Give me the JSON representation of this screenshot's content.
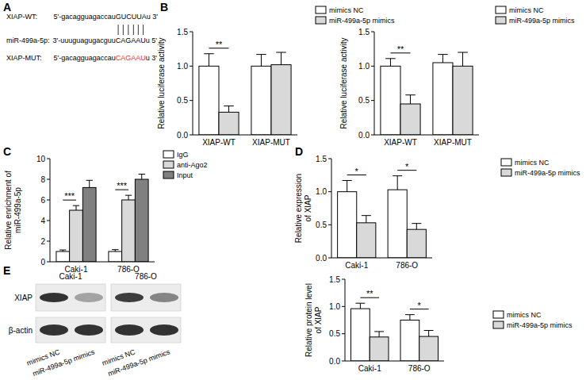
{
  "panel_labels": [
    "A",
    "B",
    "C",
    "D",
    "E"
  ],
  "sequences": [
    {
      "name": "XIAP-WT:",
      "prefix": "5'-gacagguagaccau",
      "seed": "GUCUUA",
      "suffix": "u 3'"
    },
    {
      "name": "miR-499a-5p:",
      "prefix": "3'-uuuguagugacguu",
      "seed": "CAGAAU",
      "suffix": "u 5'"
    },
    {
      "name": "XIAP-MUT:",
      "prefix": "5'-gacagguagaccau",
      "seed": "CAGAAU",
      "suffix": "u 3'",
      "color": "#e8312f"
    }
  ],
  "blot": {
    "cell_lines": [
      "Caki-1",
      "786-O"
    ],
    "proteins": [
      "XIAP",
      "β-actin"
    ],
    "lanes": [
      "mimics NC",
      "miR-499a-5p mimics",
      "mimics NC",
      "miR-499a-5p mimics"
    ]
  },
  "chart_data": [
    {
      "type": "bar",
      "y_label": [
        "Relative luciferase activity"
      ],
      "categories": [
        "XIAP-WT",
        "XIAP-MUT"
      ],
      "series": [
        {
          "name": "mimics NC",
          "color": "#ffffff",
          "values": [
            1.0,
            1.0
          ],
          "errors": [
            0.18,
            0.17
          ]
        },
        {
          "name": "miR-499a-5p mimics",
          "color": "#d9d9d9",
          "values": [
            0.33,
            1.02
          ],
          "errors": [
            0.09,
            0.18
          ]
        }
      ],
      "significance": [
        "**",
        null
      ],
      "ylim": [
        0,
        1.5
      ],
      "yticks": [
        {
          "value": 0,
          "label": "0.0"
        },
        0.5,
        {
          "value": 1,
          "label": "1.0"
        },
        1.5
      ],
      "legend": "right"
    },
    {
      "type": "bar",
      "y_label": [
        "Relative luciferase activity"
      ],
      "categories": [
        "XIAP-WT",
        "XIAP-MUT"
      ],
      "series": [
        {
          "name": "mimics NC",
          "color": "#ffffff",
          "values": [
            1.0,
            1.05
          ],
          "errors": [
            0.11,
            0.12
          ]
        },
        {
          "name": "miR-499a-5p mimics",
          "color": "#d9d9d9",
          "values": [
            0.45,
            1.0
          ],
          "errors": [
            0.13,
            0.2
          ]
        }
      ],
      "significance": [
        "**",
        null
      ],
      "ylim": [
        0,
        1.5
      ],
      "yticks": [
        {
          "value": 0,
          "label": "0.0"
        },
        0.5,
        {
          "value": 1,
          "label": "1.0"
        },
        1.5
      ],
      "legend": "right"
    },
    {
      "type": "bar",
      "y_label": [
        "Relative enrichment of",
        "miR-499a-5p"
      ],
      "categories": [
        "Caki-1",
        "786-O"
      ],
      "series": [
        {
          "name": "IgG",
          "color": "#ffffff",
          "values": [
            1.0,
            1.0
          ],
          "errors": [
            0.15,
            0.18
          ]
        },
        {
          "name": "anti-Ago2",
          "color": "#d9d9d9",
          "values": [
            5.0,
            6.0
          ],
          "errors": [
            0.45,
            0.45
          ]
        },
        {
          "name": "Input",
          "color": "#808080",
          "values": [
            7.2,
            8.0
          ],
          "errors": [
            0.7,
            0.5
          ]
        }
      ],
      "significance": [
        "***",
        "***"
      ],
      "ylim": [
        0,
        10
      ],
      "yticks": [
        0,
        2,
        4,
        6,
        8,
        10
      ],
      "legend": "right"
    },
    {
      "type": "bar",
      "y_label": [
        "Relative expression",
        "of XIAP"
      ],
      "categories": [
        "Caki-1",
        "786-O"
      ],
      "series": [
        {
          "name": "mimics NC",
          "color": "#ffffff",
          "values": [
            1.0,
            1.03
          ],
          "errors": [
            0.17,
            0.21
          ]
        },
        {
          "name": "miR-499a-5p mimics",
          "color": "#d9d9d9",
          "values": [
            0.53,
            0.43
          ],
          "errors": [
            0.11,
            0.09
          ]
        }
      ],
      "significance": [
        "*",
        "*"
      ],
      "ylim": [
        0,
        1.5
      ],
      "yticks": [
        {
          "value": 0,
          "label": "0.0"
        },
        0.5,
        {
          "value": 1,
          "label": "1.0"
        },
        1.5
      ],
      "legend": "right"
    },
    {
      "type": "bar",
      "y_label": [
        "Relative protein level",
        "of XIAP"
      ],
      "categories": [
        "Caki-1",
        "786-O"
      ],
      "series": [
        {
          "name": "mimics NC",
          "color": "#ffffff",
          "values": [
            0.96,
            0.75
          ],
          "errors": [
            0.1,
            0.1
          ]
        },
        {
          "name": "miR-499a-5p mimics",
          "color": "#d9d9d9",
          "values": [
            0.44,
            0.45
          ],
          "errors": [
            0.1,
            0.11
          ]
        }
      ],
      "significance": [
        "**",
        "*"
      ],
      "ylim": [
        0,
        1.5
      ],
      "yticks": [
        {
          "value": 0,
          "label": "0.0"
        },
        0.5,
        {
          "value": 1,
          "label": "1.0"
        },
        1.5
      ],
      "legend": "right"
    }
  ]
}
